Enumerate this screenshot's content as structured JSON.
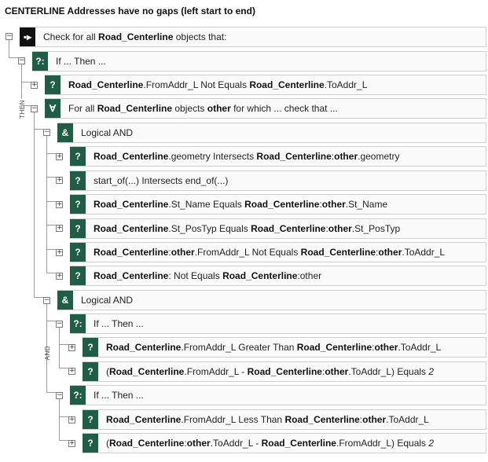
{
  "title": "CENTERLINE Addresses have no gaps (left start to end)",
  "labels": {
    "then": "THEN",
    "and": "AND"
  },
  "colors": {
    "node_green": "#1f5d45",
    "node_black": "#111111"
  },
  "rows": [
    {
      "icon": "check-icon",
      "glyph": "▪▸",
      "text": [
        "Check for all ",
        "**Road_Centerline**",
        " objects that:"
      ]
    },
    {
      "icon": "if-then-icon",
      "glyph": "?:",
      "text": [
        "If ... Then ..."
      ]
    },
    {
      "icon": "condition-icon",
      "glyph": "?",
      "text": [
        "**Road_Centerline**",
        ".FromAddr_L Not Equals ",
        "**Road_Centerline**",
        ".ToAddr_L"
      ]
    },
    {
      "icon": "for-all-icon",
      "glyph": "∀",
      "text": [
        "For all ",
        "**Road_Centerline**",
        " objects ",
        "**other**",
        " for which ... check that ..."
      ]
    },
    {
      "icon": "logical-and-icon",
      "glyph": "&",
      "text": [
        "Logical AND"
      ]
    },
    {
      "icon": "condition-icon",
      "glyph": "?",
      "text": [
        "**Road_Centerline**",
        ".geometry Intersects ",
        "**Road_Centerline**",
        ":",
        "**other**",
        ".geometry"
      ]
    },
    {
      "icon": "condition-icon",
      "glyph": "?",
      "text": [
        "start_of(...) Intersects end_of(...)"
      ]
    },
    {
      "icon": "condition-icon",
      "glyph": "?",
      "text": [
        "**Road_Centerline**",
        ".St_Name Equals ",
        "**Road_Centerline**",
        ":",
        "**other**",
        ".St_Name"
      ]
    },
    {
      "icon": "condition-icon",
      "glyph": "?",
      "text": [
        "**Road_Centerline**",
        ".St_PosTyp Equals ",
        "**Road_Centerline**",
        ":",
        "**other**",
        ".St_PosTyp"
      ]
    },
    {
      "icon": "condition-icon",
      "glyph": "?",
      "text": [
        "**Road_Centerline**",
        ":",
        "**other**",
        ".FromAddr_L Not Equals ",
        "**Road_Centerline**",
        ":",
        "**other**",
        ".ToAddr_L"
      ]
    },
    {
      "icon": "condition-icon",
      "glyph": "?",
      "text": [
        "**Road_Centerline**",
        ": Not Equals ",
        "**Road_Centerline**",
        ":other"
      ]
    },
    {
      "icon": "logical-and-icon",
      "glyph": "&",
      "text": [
        "Logical AND"
      ]
    },
    {
      "icon": "if-then-icon",
      "glyph": "?:",
      "text": [
        "If ... Then ..."
      ]
    },
    {
      "icon": "condition-icon",
      "glyph": "?",
      "text": [
        "**Road_Centerline**",
        ".FromAddr_L Greater Than ",
        "**Road_Centerline**",
        ":",
        "**other**",
        ".ToAddr_L"
      ]
    },
    {
      "icon": "condition-icon",
      "glyph": "?",
      "text": [
        "(",
        "**Road_Centerline**",
        ".FromAddr_L - ",
        "**Road_Centerline**",
        ":",
        "**other**",
        ".ToAddr_L) Equals ",
        "_2_"
      ]
    },
    {
      "icon": "if-then-icon",
      "glyph": "?:",
      "text": [
        "If ... Then ..."
      ]
    },
    {
      "icon": "condition-icon",
      "glyph": "?",
      "text": [
        "**Road_Centerline**",
        ".FromAddr_L Less Than ",
        "**Road_Centerline**",
        ":",
        "**other**",
        ".ToAddr_L"
      ]
    },
    {
      "icon": "condition-icon",
      "glyph": "?",
      "text": [
        "(",
        "**Road_Centerline**",
        ":",
        "**other**",
        ".ToAddr_L - ",
        "**Road_Centerline**",
        ".FromAddr_L) Equals ",
        "_2_"
      ]
    }
  ]
}
